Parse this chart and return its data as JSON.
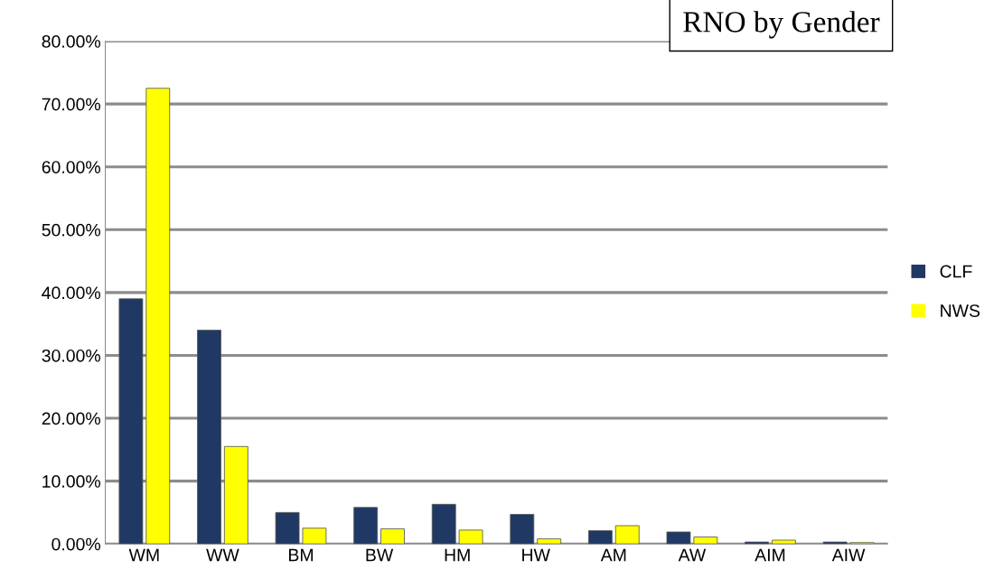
{
  "chart_data": {
    "type": "bar",
    "title": "RNO by Gender",
    "categories": [
      "WM",
      "WW",
      "BM",
      "BW",
      "HM",
      "HW",
      "AM",
      "AW",
      "AIM",
      "AIW"
    ],
    "series": [
      {
        "name": "CLF",
        "color": "#1f3864",
        "values": [
          0.39,
          0.34,
          0.05,
          0.058,
          0.063,
          0.047,
          0.021,
          0.019,
          0.003,
          0.003
        ]
      },
      {
        "name": "NWS",
        "color": "#ffff00",
        "values": [
          0.725,
          0.155,
          0.025,
          0.024,
          0.022,
          0.008,
          0.029,
          0.011,
          0.006,
          0.002
        ]
      }
    ],
    "ylim": [
      0,
      0.8
    ],
    "yticks": [
      {
        "value": 0,
        "label": "0.00%"
      },
      {
        "value": 0.1,
        "label": "10.00%"
      },
      {
        "value": 0.2,
        "label": "20.00%"
      },
      {
        "value": 0.3,
        "label": "30.00%"
      },
      {
        "value": 0.4,
        "label": "40.00%"
      },
      {
        "value": 0.5,
        "label": "50.00%"
      },
      {
        "value": 0.6,
        "label": "60.00%"
      },
      {
        "value": 0.7,
        "label": "70.00%"
      },
      {
        "value": 0.8,
        "label": "80.00%"
      }
    ],
    "grid": "y",
    "legend": "right"
  }
}
